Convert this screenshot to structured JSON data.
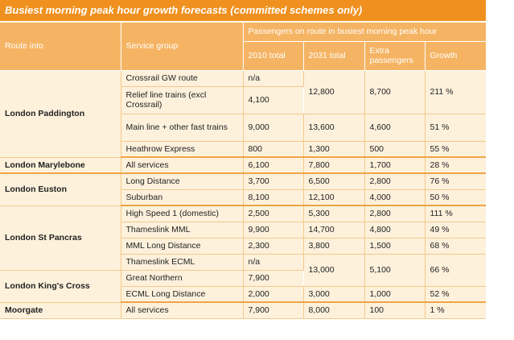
{
  "title": "Busiest morning peak hour growth forecasts (committed schemes only)",
  "headers": {
    "route": "Route into",
    "service": "Service group",
    "group": "Passengers on route in busiest morning peak hour",
    "y2010": "2010 total",
    "y2031": "2031 total",
    "extra": "Extra passengers",
    "growth": "Growth"
  },
  "rows": [
    {
      "route": "London Paddington",
      "service": "Crossrail GW route",
      "y2010": "n/a",
      "y2031": "12,800",
      "extra": "8,700",
      "growth": "211 %"
    },
    {
      "route": "",
      "service": "Relief line trains (excl Crossrail)",
      "y2010": "4,100",
      "y2031": "",
      "extra": "",
      "growth": ""
    },
    {
      "route": "",
      "service": "Main line + other fast trains",
      "y2010": "9,000",
      "y2031": "13,600",
      "extra": "4,600",
      "growth": "51 %"
    },
    {
      "route": "",
      "service": "Heathrow Express",
      "y2010": "800",
      "y2031": "1,300",
      "extra": "500",
      "growth": "55 %"
    },
    {
      "route": "London Marylebone",
      "service": "All services",
      "y2010": "6,100",
      "y2031": "7,800",
      "extra": "1,700",
      "growth": "28 %"
    },
    {
      "route": "London Euston",
      "service": "Long Distance",
      "y2010": "3,700",
      "y2031": "6,500",
      "extra": "2,800",
      "growth": "76 %"
    },
    {
      "route": "",
      "service": "Suburban",
      "y2010": "8,100",
      "y2031": "12,100",
      "extra": "4,000",
      "growth": "50 %"
    },
    {
      "route": "London St Pancras",
      "service": "High Speed 1 (domestic)",
      "y2010": "2,500",
      "y2031": "5,300",
      "extra": "2,800",
      "growth": "111 %"
    },
    {
      "route": "",
      "service": "Thameslink MML",
      "y2010": "9,900",
      "y2031": "14,700",
      "extra": "4,800",
      "growth": "49 %"
    },
    {
      "route": "",
      "service": "MML Long Distance",
      "y2010": "2,300",
      "y2031": "3,800",
      "extra": "1,500",
      "growth": "68 %"
    },
    {
      "route": "",
      "service": "Thameslink ECML",
      "y2010": "n/a",
      "y2031": "13,000",
      "extra": "5,100",
      "growth": "66 %"
    },
    {
      "route": "London King's Cross",
      "service": "Great Northern",
      "y2010": "7,900",
      "y2031": "",
      "extra": "",
      "growth": ""
    },
    {
      "route": "",
      "service": "ECML Long Distance",
      "y2010": "2,000",
      "y2031": "3,000",
      "extra": "1,000",
      "growth": "52 %"
    },
    {
      "route": "Moorgate",
      "service": "All services",
      "y2010": "7,900",
      "y2031": "8,000",
      "extra": "100",
      "growth": "1 %"
    }
  ]
}
